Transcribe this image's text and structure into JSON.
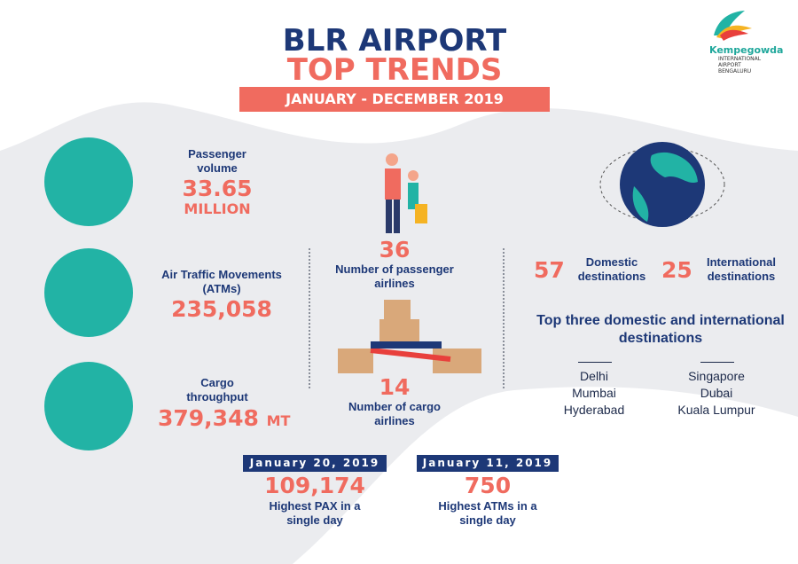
{
  "logo": {
    "name": "Kempegowda",
    "sub": "INTERNATIONAL AIRPORT BENGALURU"
  },
  "title": {
    "line1": "BLR AIRPORT",
    "line2": "TOP TRENDS",
    "period": "JANUARY - DECEMBER 2019"
  },
  "passenger": {
    "label": "Passenger volume",
    "value": "33.65",
    "unit": "MILLION"
  },
  "atm": {
    "label": "Air Traffic Movements (ATMs)",
    "value": "235,058"
  },
  "cargo": {
    "label": "Cargo throughput",
    "value": "379,348",
    "unit": "MT"
  },
  "passenger_airlines": {
    "value": "36",
    "label": "Number of passenger airlines"
  },
  "cargo_airlines": {
    "value": "14",
    "label": "Number of cargo airlines"
  },
  "destinations": {
    "domestic_value": "57",
    "domestic_label": "Domestic destinations",
    "international_value": "25",
    "international_label": "International destinations"
  },
  "top_three": {
    "title": "Top three domestic and international destinations",
    "domestic": [
      "Delhi",
      "Mumbai",
      "Hyderabad"
    ],
    "international": [
      "Singapore",
      "Dubai",
      "Kuala Lumpur"
    ]
  },
  "highest_pax": {
    "date": "January 20, 2019",
    "value": "109,174",
    "label": "Highest PAX in a single day"
  },
  "highest_atm": {
    "date": "January 11, 2019",
    "value": "750",
    "label": "Highest ATMs in a single day"
  },
  "colors": {
    "navy": "#1d3877",
    "coral": "#f06b5f",
    "teal": "#22b3a5"
  }
}
